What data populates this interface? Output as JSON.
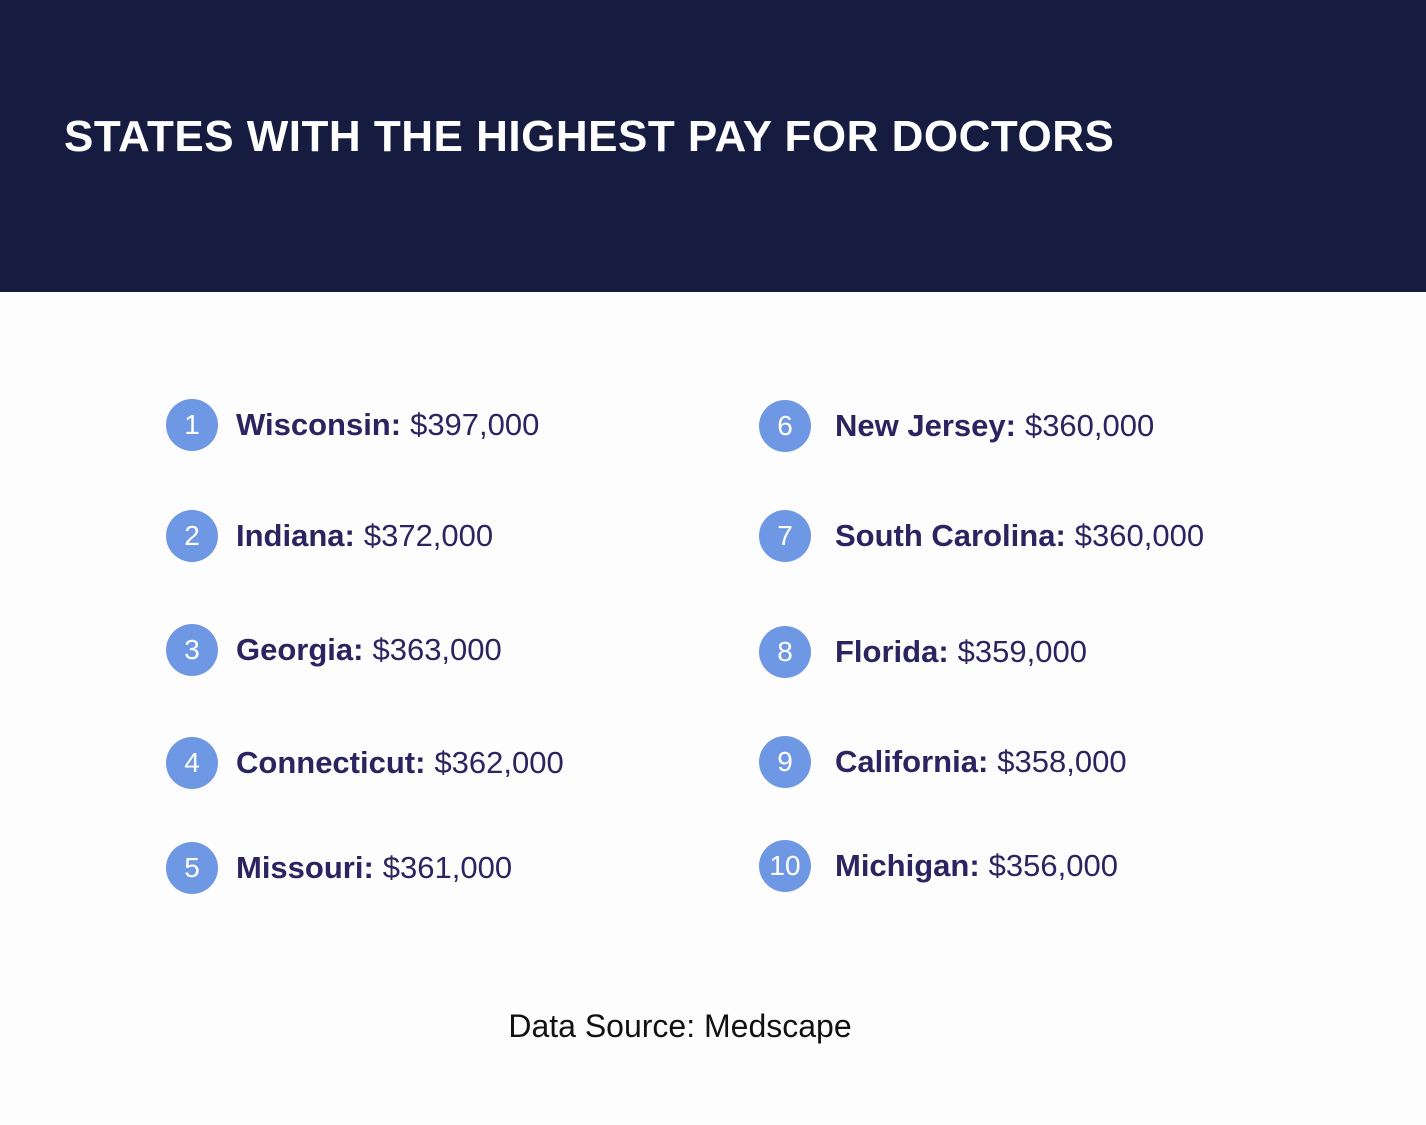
{
  "header": {
    "title": "STATES WITH THE HIGHEST PAY FOR DOCTORS"
  },
  "items": [
    {
      "rank": 1,
      "state": "Wisconsin:",
      "pay": "$397,000"
    },
    {
      "rank": 2,
      "state": "Indiana:",
      "pay": "$372,000"
    },
    {
      "rank": 3,
      "state": "Georgia:",
      "pay": "$363,000"
    },
    {
      "rank": 4,
      "state": "Connecticut:",
      "pay": "$362,000"
    },
    {
      "rank": 5,
      "state": "Missouri:",
      "pay": "$361,000"
    },
    {
      "rank": 6,
      "state": "New Jersey:",
      "pay": "$360,000"
    },
    {
      "rank": 7,
      "state": "South Carolina:",
      "pay": "$360,000"
    },
    {
      "rank": 8,
      "state": "Florida:",
      "pay": "$359,000"
    },
    {
      "rank": 9,
      "state": "California:",
      "pay": "$358,000"
    },
    {
      "rank": 10,
      "state": "Michigan:",
      "pay": "$356,000"
    }
  ],
  "footer": {
    "source": "Data Source: Medscape"
  }
}
